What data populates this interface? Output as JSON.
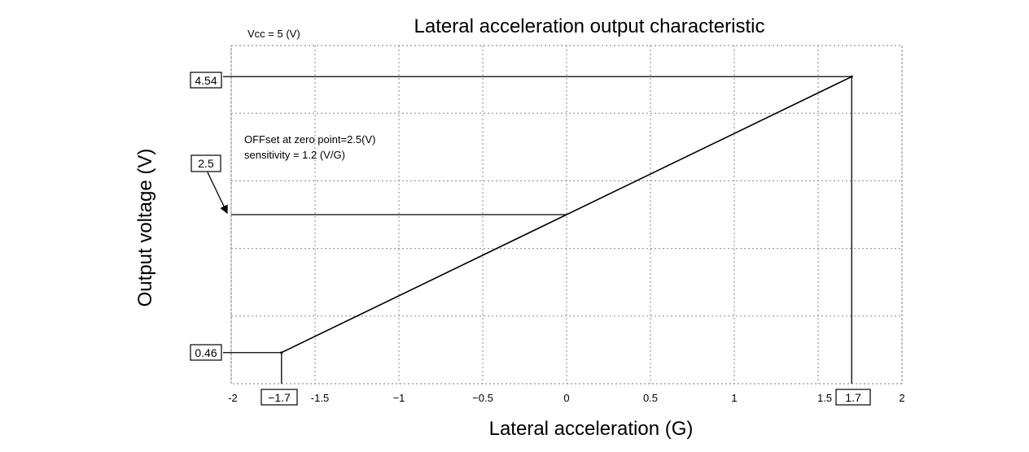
{
  "chart_data": {
    "type": "line",
    "title": "Lateral acceleration output characteristic",
    "xlabel": "Lateral acceleration (G)",
    "ylabel": "Output voltage (V)",
    "xlim": [
      -2,
      2
    ],
    "ylim": [
      0.0,
      5.0
    ],
    "grid": true,
    "x_ticks": [
      -2,
      -1.5,
      -1,
      -0.5,
      0,
      0.5,
      1,
      1.5,
      2
    ],
    "x_tick_labels": [
      "-2",
      "-1.5",
      "−1",
      "−0.5",
      "0",
      "0.5",
      "1",
      "1.5",
      "2"
    ],
    "series": [
      {
        "x": [
          -1.7,
          1.7
        ],
        "y": [
          0.46,
          4.54
        ]
      }
    ],
    "annotations": {
      "vcc": "Vcc = 5 (V)",
      "offset": "OFFset at zero point=2.5(V)",
      "sensitivity": "sensitivity = 1.2 (V/G)"
    },
    "boxed_labels": {
      "y_high": "4.54",
      "y_mid": "2.5",
      "y_low": "0.46",
      "x_low": "−1.7",
      "x_high": "1.7"
    }
  }
}
